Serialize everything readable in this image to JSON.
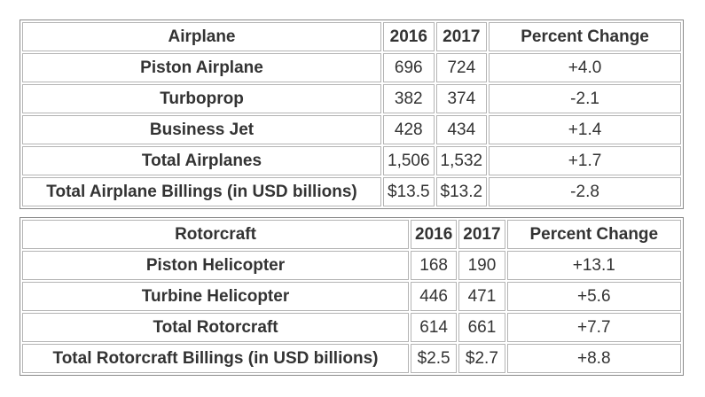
{
  "airplane": {
    "header": {
      "label": "Airplane",
      "y2016": "2016",
      "y2017": "2017",
      "change": "Percent Change"
    },
    "rows": [
      {
        "label": "Piston Airplane",
        "y2016": "696",
        "y2017": "724",
        "change": "+4.0"
      },
      {
        "label": "Turboprop",
        "y2016": "382",
        "y2017": "374",
        "change": "-2.1"
      },
      {
        "label": "Business Jet",
        "y2016": "428",
        "y2017": "434",
        "change": "+1.4"
      },
      {
        "label": "Total Airplanes",
        "y2016": "1,506",
        "y2017": "1,532",
        "change": "+1.7"
      },
      {
        "label": "Total Airplane Billings (in USD billions)",
        "y2016": "$13.5",
        "y2017": "$13.2",
        "change": "-2.8"
      }
    ]
  },
  "rotorcraft": {
    "header": {
      "label": "Rotorcraft",
      "y2016": "2016",
      "y2017": "2017",
      "change": "Percent Change"
    },
    "rows": [
      {
        "label": "Piston Helicopter",
        "y2016": "168",
        "y2017": "190",
        "change": "+13.1"
      },
      {
        "label": "Turbine Helicopter",
        "y2016": "446",
        "y2017": "471",
        "change": "+5.6"
      },
      {
        "label": "Total Rotorcraft",
        "y2016": "614",
        "y2017": "661",
        "change": "+7.7"
      },
      {
        "label": "Total Rotorcraft Billings (in USD billions)",
        "y2016": "$2.5",
        "y2017": "$2.7",
        "change": "+8.8"
      }
    ]
  }
}
